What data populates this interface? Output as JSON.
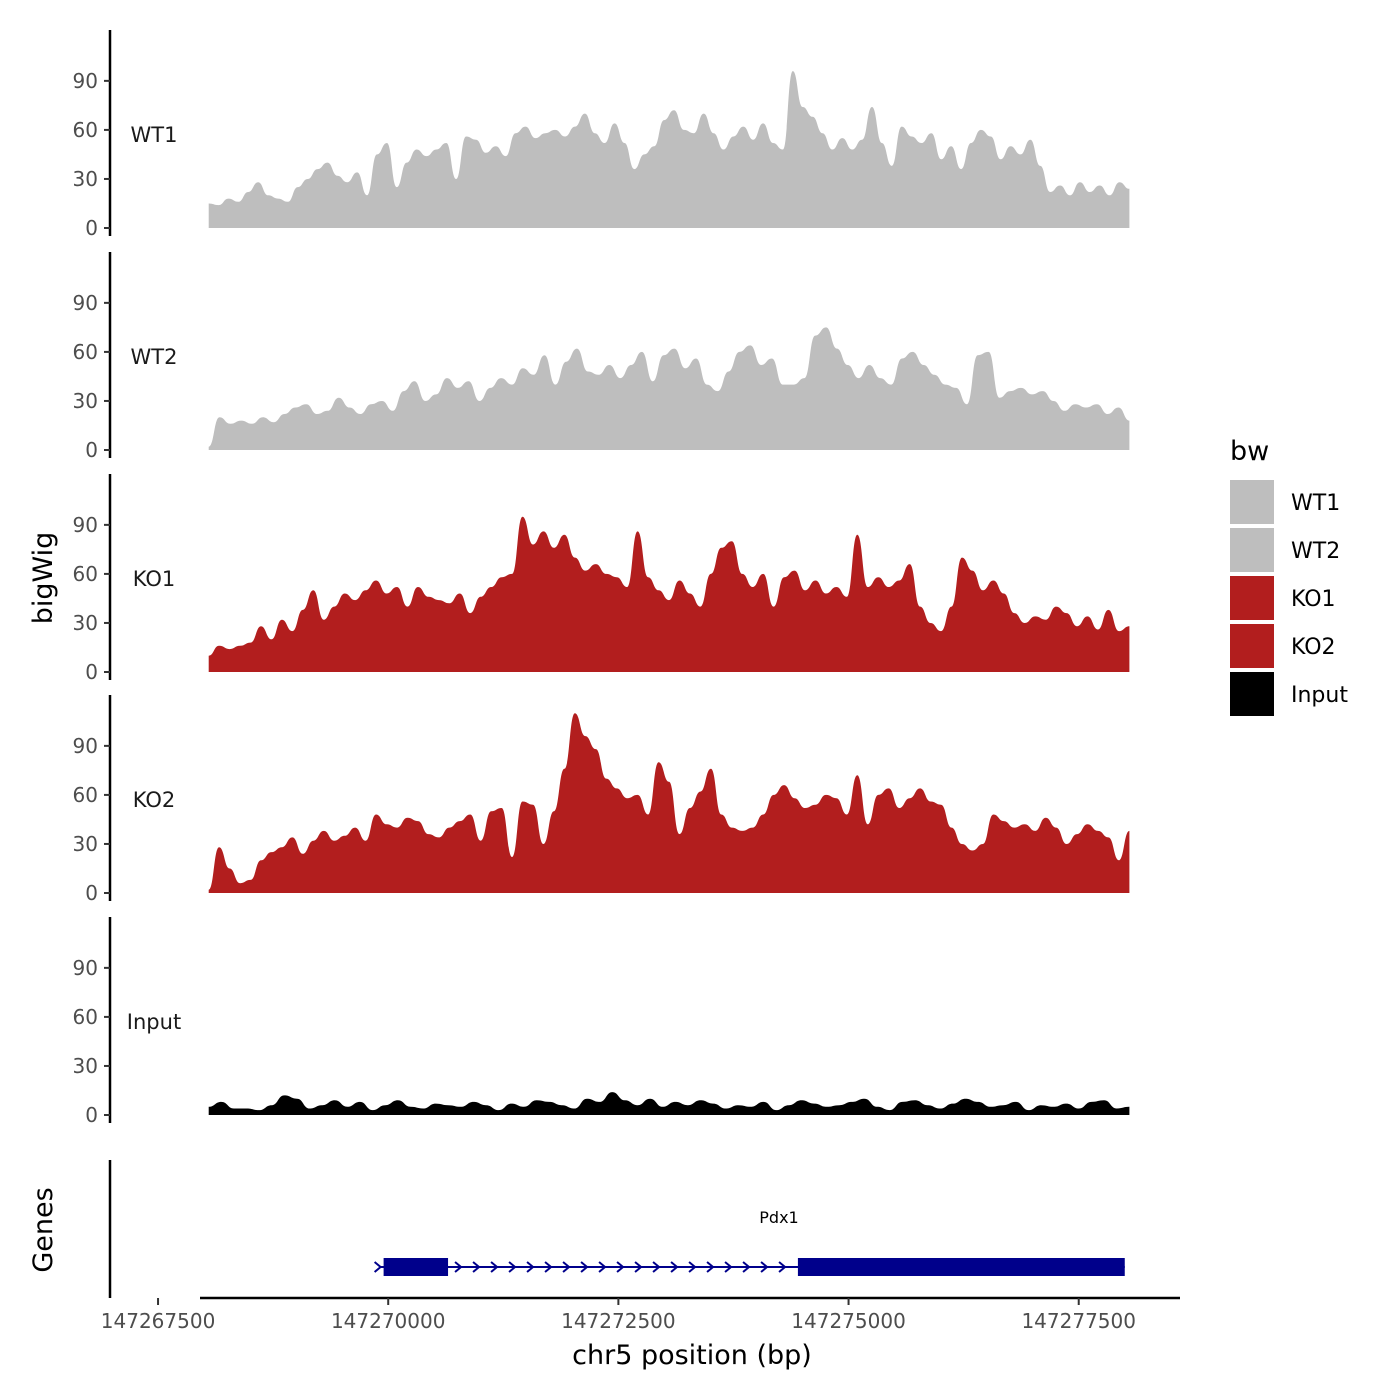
{
  "chart_data": {
    "type": "area",
    "ylabel": "bigWig",
    "xlabel": "chr5 position (bp)",
    "xlim": [
      147267000,
      147278600
    ],
    "x_ticks": [
      147267500,
      147270000,
      147272500,
      147275000,
      147277500
    ],
    "x_tick_labels": [
      "147267500",
      "147270000",
      "147272500",
      "147275000",
      "147277500"
    ],
    "ylim": [
      0,
      115
    ],
    "y_ticks": [
      0,
      30,
      60,
      90
    ],
    "y_tick_labels": [
      "0",
      "30",
      "60",
      "90"
    ],
    "x_start": 147268050,
    "x_end": 147278050,
    "legend": {
      "title": "bw",
      "position": "right",
      "entries": [
        {
          "label": "WT1",
          "color": "#bebebe"
        },
        {
          "label": "WT2",
          "color": "#bebebe"
        },
        {
          "label": "KO1",
          "color": "#b21e1e"
        },
        {
          "label": "KO2",
          "color": "#b21e1e"
        },
        {
          "label": "Input",
          "color": "#000000"
        }
      ]
    },
    "series": [
      {
        "name": "WT1",
        "color": "#bebebe",
        "values": [
          15,
          14,
          18,
          16,
          22,
          28,
          20,
          18,
          16,
          25,
          30,
          36,
          40,
          32,
          28,
          34,
          20,
          45,
          52,
          25,
          40,
          48,
          44,
          48,
          52,
          30,
          56,
          54,
          46,
          50,
          44,
          58,
          62,
          55,
          58,
          60,
          56,
          62,
          70,
          58,
          52,
          64,
          52,
          36,
          45,
          50,
          66,
          72,
          60,
          58,
          70,
          58,
          48,
          56,
          62,
          54,
          64,
          52,
          48,
          96,
          74,
          68,
          58,
          48,
          55,
          48,
          54,
          74,
          52,
          38,
          62,
          56,
          52,
          58,
          42,
          50,
          36,
          52,
          60,
          56,
          42,
          50,
          45,
          54,
          38,
          22,
          26,
          20,
          28,
          22,
          26,
          20,
          28,
          24
        ]
      },
      {
        "name": "WT2",
        "color": "#bebebe",
        "values": [
          2,
          20,
          16,
          18,
          16,
          20,
          17,
          22,
          26,
          28,
          22,
          24,
          32,
          26,
          22,
          28,
          30,
          24,
          36,
          42,
          30,
          34,
          44,
          38,
          42,
          30,
          38,
          44,
          40,
          50,
          46,
          58,
          40,
          54,
          62,
          48,
          46,
          52,
          44,
          52,
          60,
          42,
          58,
          62,
          50,
          56,
          40,
          36,
          48,
          60,
          64,
          52,
          56,
          40,
          40,
          44,
          70,
          75,
          62,
          52,
          44,
          52,
          44,
          40,
          56,
          60,
          52,
          46,
          40,
          38,
          28,
          58,
          60,
          32,
          36,
          38,
          34,
          36,
          30,
          24,
          28,
          26,
          28,
          22,
          26,
          18
        ]
      },
      {
        "name": "KO1",
        "color": "#b21e1e",
        "values": [
          10,
          16,
          14,
          16,
          18,
          28,
          20,
          32,
          25,
          38,
          50,
          32,
          40,
          48,
          44,
          50,
          56,
          48,
          52,
          40,
          52,
          46,
          44,
          42,
          48,
          36,
          46,
          52,
          58,
          60,
          95,
          78,
          86,
          76,
          84,
          70,
          62,
          66,
          60,
          58,
          52,
          86,
          58,
          50,
          44,
          56,
          48,
          40,
          60,
          76,
          80,
          60,
          52,
          60,
          40,
          58,
          62,
          50,
          56,
          48,
          52,
          46,
          84,
          52,
          58,
          52,
          56,
          66,
          40,
          30,
          25,
          40,
          70,
          62,
          50,
          56,
          48,
          36,
          30,
          34,
          32,
          40,
          36,
          28,
          34,
          26,
          38,
          25,
          28
        ]
      },
      {
        "name": "KO2",
        "color": "#b21e1e",
        "values": [
          2,
          28,
          15,
          6,
          8,
          20,
          25,
          28,
          34,
          24,
          32,
          38,
          32,
          35,
          40,
          32,
          48,
          42,
          40,
          46,
          44,
          36,
          34,
          40,
          44,
          48,
          32,
          50,
          52,
          22,
          56,
          54,
          30,
          50,
          76,
          110,
          96,
          88,
          70,
          64,
          58,
          60,
          48,
          80,
          68,
          36,
          52,
          62,
          76,
          48,
          40,
          38,
          40,
          48,
          60,
          66,
          58,
          52,
          54,
          60,
          58,
          48,
          72,
          42,
          60,
          64,
          52,
          58,
          64,
          56,
          54,
          40,
          30,
          26,
          30,
          48,
          44,
          40,
          42,
          38,
          46,
          40,
          30,
          36,
          42,
          38,
          34,
          20,
          38
        ]
      },
      {
        "name": "Input",
        "color": "#000000",
        "values": [
          5,
          8,
          4,
          4,
          3,
          6,
          12,
          10,
          4,
          6,
          9,
          5,
          8,
          3,
          6,
          9,
          5,
          4,
          7,
          6,
          5,
          8,
          6,
          3,
          7,
          5,
          9,
          8,
          6,
          4,
          10,
          8,
          14,
          9,
          6,
          10,
          5,
          8,
          6,
          9,
          7,
          4,
          6,
          5,
          8,
          3,
          6,
          9,
          7,
          5,
          6,
          8,
          10,
          5,
          3,
          8,
          9,
          6,
          4,
          7,
          10,
          8,
          5,
          6,
          8,
          3,
          6,
          5,
          7,
          4,
          8,
          9,
          4,
          5
        ]
      }
    ],
    "genes_track": {
      "ylabel": "Genes",
      "gene_name": "Pdx1",
      "strand": "+",
      "tx_start": 147269950,
      "tx_end": 147278000,
      "exons": [
        [
          147269950,
          147270650
        ],
        [
          147274450,
          147278000
        ]
      ]
    }
  }
}
